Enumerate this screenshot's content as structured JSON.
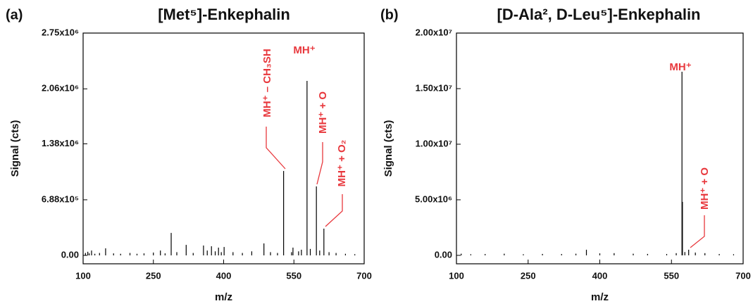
{
  "chart_data": [
    {
      "type": "spectrum",
      "label": "(a)",
      "title": "[Met⁵]-Enkephalin",
      "x_label": "m/z",
      "y_label": "Signal (cts)",
      "color": "#000000",
      "annotation_color": "#e8383d",
      "xlim": [
        100,
        700
      ],
      "xticks": [
        100,
        250,
        400,
        550,
        700
      ],
      "ylim": [
        -104000,
        2750000
      ],
      "yticks": [
        {
          "value": 0,
          "label": "0.00"
        },
        {
          "value": 688000,
          "label": "6.88x10⁵"
        },
        {
          "value": 1380000,
          "label": "1.38x10⁶"
        },
        {
          "value": 2060000,
          "label": "2.06x10⁶"
        },
        {
          "value": 2750000,
          "label": "2.75x10⁶"
        }
      ],
      "x": [
        105,
        110,
        113,
        118,
        125,
        135,
        148,
        165,
        180,
        200,
        215,
        230,
        250,
        265,
        275,
        288,
        300,
        320,
        335,
        357,
        365,
        374,
        382,
        389,
        395,
        401,
        420,
        440,
        460,
        486,
        500,
        515,
        528,
        545,
        548,
        560,
        566,
        578,
        585,
        598,
        605,
        614,
        625,
        640,
        660,
        680
      ],
      "values": [
        30000,
        45000,
        25000,
        60000,
        20000,
        30000,
        87000,
        25000,
        20000,
        30000,
        20000,
        25000,
        35000,
        60000,
        25000,
        278000,
        40000,
        130000,
        30000,
        122000,
        60000,
        113000,
        50000,
        96000,
        40000,
        104000,
        40000,
        30000,
        50000,
        148000,
        40000,
        30000,
        1044000,
        40000,
        96000,
        50000,
        70000,
        2158000,
        80000,
        853000,
        60000,
        331000,
        40000,
        30000,
        20000,
        15000
      ],
      "annotations": [
        {
          "text": "MH⁺"
        },
        {
          "text": "MH⁺ – CH₃SH"
        },
        {
          "text": "MH⁺ + O"
        },
        {
          "text": "MH⁺ + O₂"
        }
      ]
    },
    {
      "type": "spectrum",
      "label": "(b)",
      "title": "[D-Ala², D-Leu⁵]-Enkephalin",
      "x_label": "m/z",
      "y_label": "Signal (cts)",
      "color": "#000000",
      "annotation_color": "#e8383d",
      "xlim": [
        100,
        700
      ],
      "xticks": [
        100,
        250,
        400,
        550,
        700
      ],
      "ylim": [
        -760000,
        20000000
      ],
      "yticks": [
        {
          "value": 0,
          "label": "0.00"
        },
        {
          "value": 5000000,
          "label": "5.00x10⁶"
        },
        {
          "value": 10000000,
          "label": "1.00x10⁷"
        },
        {
          "value": 15000000,
          "label": "1.50x10⁷"
        },
        {
          "value": 20000000,
          "label": "2.00x10⁷"
        }
      ],
      "x": [
        110,
        130,
        160,
        200,
        240,
        280,
        320,
        350,
        372,
        400,
        430,
        470,
        500,
        540,
        560,
        572,
        573,
        578,
        586,
        600,
        620,
        650,
        680
      ],
      "values": [
        150000,
        100000,
        120000,
        150000,
        100000,
        130000,
        120000,
        150000,
        506000,
        180000,
        200000,
        150000,
        130000,
        120000,
        200000,
        16520000,
        4810000,
        300000,
        506000,
        250000,
        200000,
        120000,
        100000
      ],
      "annotations": [
        {
          "text": "MH⁺"
        },
        {
          "text": "MH⁺ + O"
        }
      ]
    }
  ]
}
